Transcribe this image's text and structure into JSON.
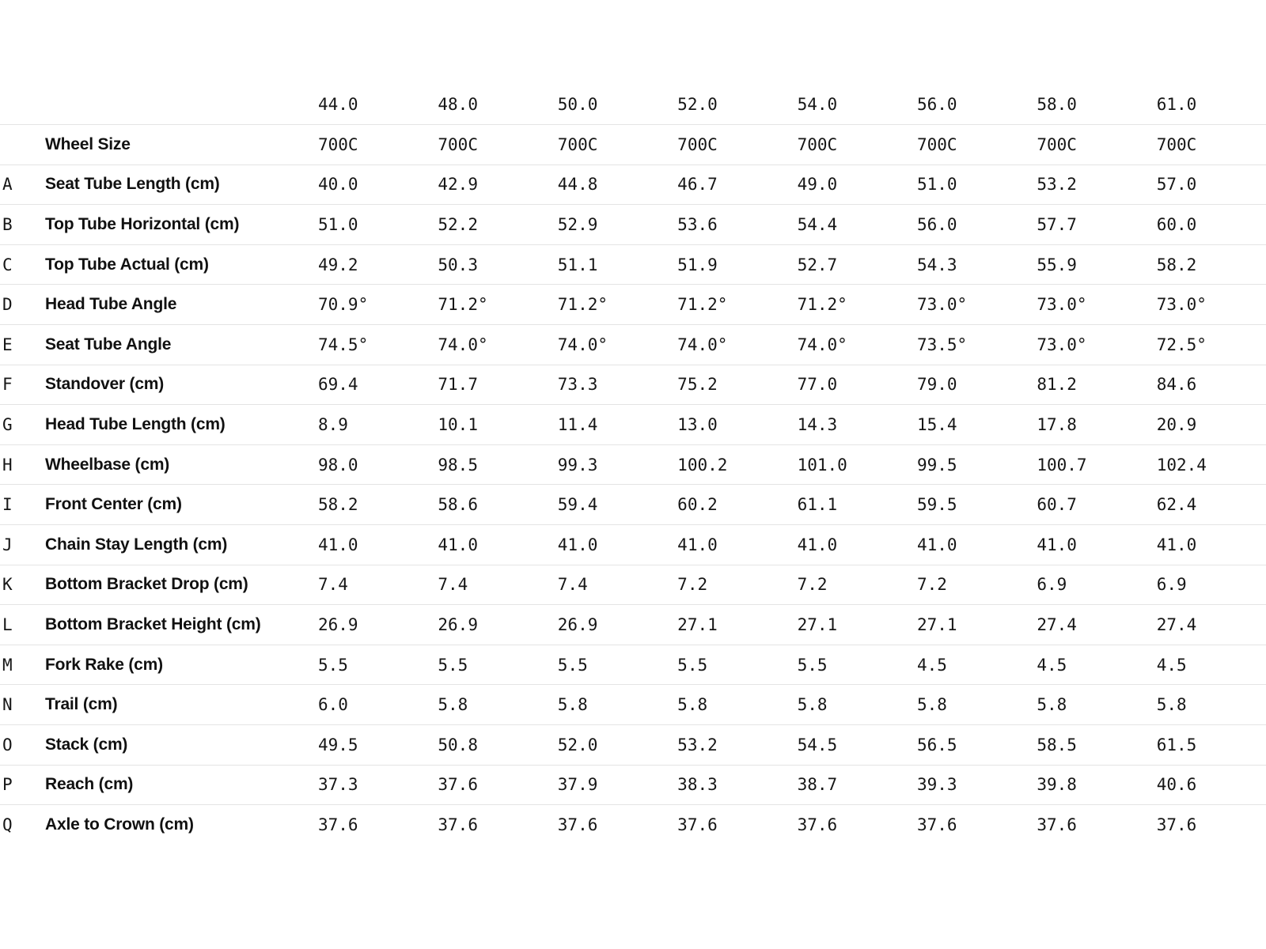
{
  "colors": {
    "background": "#ffffff",
    "text": "#161616",
    "divider": "#e4e4e4"
  },
  "chart_data": {
    "type": "table",
    "column_headers": [
      "44.0",
      "48.0",
      "50.0",
      "52.0",
      "54.0",
      "56.0",
      "58.0",
      "61.0"
    ],
    "rows": [
      {
        "letter": "",
        "label": "Wheel Size",
        "values": [
          "700C",
          "700C",
          "700C",
          "700C",
          "700C",
          "700C",
          "700C",
          "700C"
        ]
      },
      {
        "letter": "A",
        "label": "Seat Tube Length (cm)",
        "values": [
          "40.0",
          "42.9",
          "44.8",
          "46.7",
          "49.0",
          "51.0",
          "53.2",
          "57.0"
        ]
      },
      {
        "letter": "B",
        "label": "Top Tube Horizontal (cm)",
        "values": [
          "51.0",
          "52.2",
          "52.9",
          "53.6",
          "54.4",
          "56.0",
          "57.7",
          "60.0"
        ]
      },
      {
        "letter": "C",
        "label": "Top Tube Actual (cm)",
        "values": [
          "49.2",
          "50.3",
          "51.1",
          "51.9",
          "52.7",
          "54.3",
          "55.9",
          "58.2"
        ]
      },
      {
        "letter": "D",
        "label": "Head Tube Angle",
        "values": [
          "70.9°",
          "71.2°",
          "71.2°",
          "71.2°",
          "71.2°",
          "73.0°",
          "73.0°",
          "73.0°"
        ]
      },
      {
        "letter": "E",
        "label": "Seat Tube Angle",
        "values": [
          "74.5°",
          "74.0°",
          "74.0°",
          "74.0°",
          "74.0°",
          "73.5°",
          "73.0°",
          "72.5°"
        ]
      },
      {
        "letter": "F",
        "label": "Standover (cm)",
        "values": [
          "69.4",
          "71.7",
          "73.3",
          "75.2",
          "77.0",
          "79.0",
          "81.2",
          "84.6"
        ]
      },
      {
        "letter": "G",
        "label": "Head Tube Length (cm)",
        "values": [
          "8.9",
          "10.1",
          "11.4",
          "13.0",
          "14.3",
          "15.4",
          "17.8",
          "20.9"
        ]
      },
      {
        "letter": "H",
        "label": "Wheelbase (cm)",
        "values": [
          "98.0",
          "98.5",
          "99.3",
          "100.2",
          "101.0",
          "99.5",
          "100.7",
          "102.4"
        ]
      },
      {
        "letter": "I",
        "label": "Front Center (cm)",
        "values": [
          "58.2",
          "58.6",
          "59.4",
          "60.2",
          "61.1",
          "59.5",
          "60.7",
          "62.4"
        ]
      },
      {
        "letter": "J",
        "label": "Chain Stay Length (cm)",
        "values": [
          "41.0",
          "41.0",
          "41.0",
          "41.0",
          "41.0",
          "41.0",
          "41.0",
          "41.0"
        ]
      },
      {
        "letter": "K",
        "label": "Bottom Bracket Drop (cm)",
        "values": [
          "7.4",
          "7.4",
          "7.4",
          "7.2",
          "7.2",
          "7.2",
          "6.9",
          "6.9"
        ]
      },
      {
        "letter": "L",
        "label": "Bottom Bracket Height (cm)",
        "values": [
          "26.9",
          "26.9",
          "26.9",
          "27.1",
          "27.1",
          "27.1",
          "27.4",
          "27.4"
        ]
      },
      {
        "letter": "M",
        "label": "Fork Rake (cm)",
        "values": [
          "5.5",
          "5.5",
          "5.5",
          "5.5",
          "5.5",
          "4.5",
          "4.5",
          "4.5"
        ]
      },
      {
        "letter": "N",
        "label": "Trail (cm)",
        "values": [
          "6.0",
          "5.8",
          "5.8",
          "5.8",
          "5.8",
          "5.8",
          "5.8",
          "5.8"
        ]
      },
      {
        "letter": "O",
        "label": "Stack (cm)",
        "values": [
          "49.5",
          "50.8",
          "52.0",
          "53.2",
          "54.5",
          "56.5",
          "58.5",
          "61.5"
        ]
      },
      {
        "letter": "P",
        "label": "Reach (cm)",
        "values": [
          "37.3",
          "37.6",
          "37.9",
          "38.3",
          "38.7",
          "39.3",
          "39.8",
          "40.6"
        ]
      },
      {
        "letter": "Q",
        "label": "Axle to Crown (cm)",
        "values": [
          "37.6",
          "37.6",
          "37.6",
          "37.6",
          "37.6",
          "37.6",
          "37.6",
          "37.6"
        ]
      }
    ]
  }
}
